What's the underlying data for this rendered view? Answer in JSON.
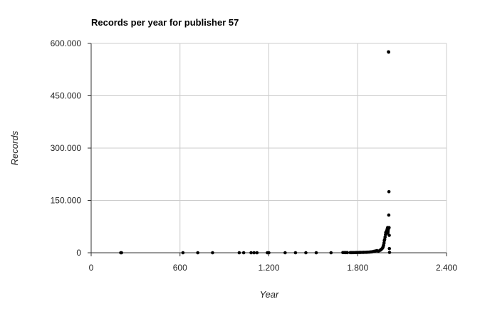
{
  "chart_data": {
    "type": "scatter",
    "title": "Records per year for publisher 57",
    "xlabel": "Year",
    "ylabel": "Records",
    "xlim": [
      0,
      2400
    ],
    "ylim": [
      0,
      600000
    ],
    "x_ticks": [
      0,
      600,
      1200,
      1800,
      2400
    ],
    "x_tick_labels": [
      "0",
      "600",
      "1.200",
      "1.800",
      "2.400"
    ],
    "y_ticks": [
      0,
      150000,
      300000,
      450000,
      600000
    ],
    "y_tick_labels": [
      "0",
      "150.000",
      "300.000",
      "450.000",
      "600.000"
    ],
    "grid": true,
    "legend": "none",
    "marker_color": "#000000",
    "series": [
      {
        "x": [
          200,
          205,
          620,
          720,
          820,
          1000,
          1030,
          1080,
          1100,
          1120,
          1190,
          1200,
          1310,
          1380,
          1450,
          1520,
          1620,
          1700,
          1710,
          1720,
          1730,
          1750,
          1760,
          1770,
          1780,
          1790,
          1800,
          1810,
          1820,
          1830,
          1840,
          1850,
          1860,
          1870,
          1880,
          1890,
          1900,
          1910,
          1920,
          1930,
          1940,
          1950,
          1955,
          1960,
          1965,
          1970,
          1972,
          1975,
          1978,
          1980,
          1982,
          1985,
          1988,
          1990,
          1992,
          1994,
          1996,
          1998,
          2000,
          2001,
          2002,
          2003,
          2004,
          2005,
          2006,
          2007,
          2008,
          2009,
          2010,
          2011,
          2012,
          2013,
          2014,
          2015
        ],
        "y": [
          0,
          0,
          0,
          0,
          0,
          0,
          0,
          0,
          0,
          0,
          0,
          0,
          0,
          0,
          0,
          0,
          0,
          500,
          500,
          400,
          300,
          300,
          300,
          400,
          500,
          600,
          700,
          800,
          900,
          1000,
          1200,
          1300,
          1500,
          1700,
          2000,
          2500,
          3000,
          4000,
          5000,
          6000,
          4500,
          7000,
          8000,
          10000,
          12000,
          15000,
          18000,
          22000,
          28000,
          35000,
          38000,
          45000,
          52000,
          58000,
          60000,
          55000,
          62000,
          65000,
          68000,
          70000,
          72000,
          60000,
          58000,
          62000,
          66000,
          69000,
          576000,
          575000,
          108000,
          175000,
          72000,
          50000,
          12000,
          1000
        ]
      }
    ]
  }
}
